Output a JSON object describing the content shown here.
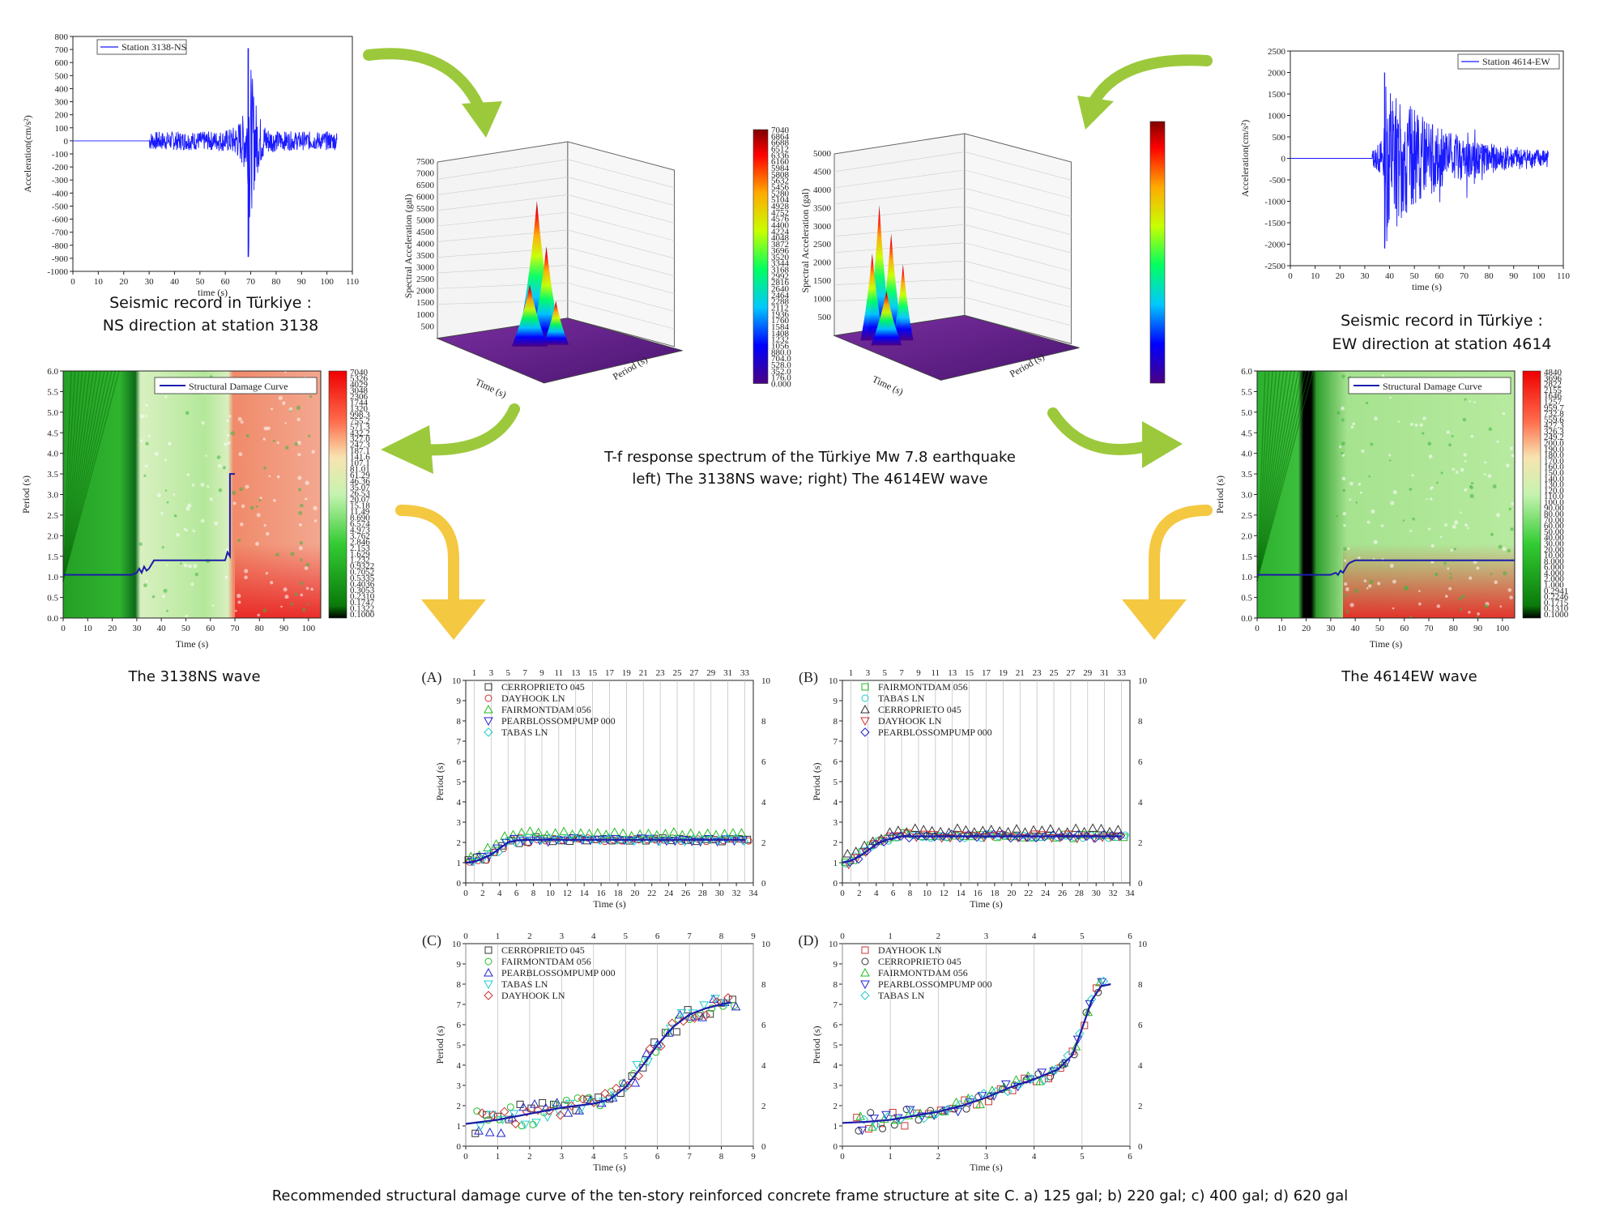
{
  "captions": {
    "left_record_1": "Seismic record in Türkiye :",
    "left_record_2": "NS direction at station 3138",
    "right_record_1": "Seismic record in Türkiye :",
    "right_record_2": "EW direction at station 4614",
    "center_1": "T-f response spectrum of the Türkiye Mw 7.8 earthquake",
    "center_2": "left) The 3138NS wave; right) The 4614EW wave",
    "left_damage": "The 3138NS wave",
    "right_damage": "The 4614EW wave",
    "bottom": "Recommended structural damage curve of the ten-story reinforced concrete frame structure at site C. a) 125 gal; b) 220 gal; c) 400 gal; d) 620 gal"
  },
  "colors": {
    "signal": "#1a1aff",
    "curve": "#1c1ca8",
    "arrow_green": "#9cc93b",
    "arrow_yellow": "#f5c842",
    "marker_cerro": "#333333",
    "marker_dayhook": "#cc3333",
    "marker_fairmont": "#22bb22",
    "marker_pearblossom": "#2222cc",
    "marker_tabas": "#22cccc"
  },
  "chart_data": [
    {
      "id": "record_3138",
      "type": "line",
      "legend": "Station 3138-NS",
      "xlabel": "time (s)",
      "ylabel": "Acceleration(cm/s²)",
      "xlim": [
        0,
        110
      ],
      "ylim": [
        -1000,
        800
      ],
      "xticks": [
        0,
        10,
        20,
        30,
        40,
        50,
        60,
        70,
        80,
        90,
        100,
        110
      ],
      "yticks": [
        -1000,
        -900,
        -800,
        -700,
        -600,
        -500,
        -400,
        -300,
        -200,
        -100,
        0,
        100,
        200,
        300,
        400,
        500,
        600,
        700,
        800
      ],
      "signal": {
        "start": 30,
        "end": 104,
        "peak_time": 69,
        "peak_max": 710,
        "peak_min": -890
      }
    },
    {
      "id": "record_4614",
      "type": "line",
      "legend": "Station 4614-EW",
      "xlabel": "time (s)",
      "ylabel": "Acceleration(cm/s²)",
      "xlim": [
        0,
        110
      ],
      "ylim": [
        -2500,
        2500
      ],
      "xticks": [
        0,
        10,
        20,
        30,
        40,
        50,
        60,
        70,
        80,
        90,
        100,
        110
      ],
      "yticks": [
        -2500,
        -2000,
        -1500,
        -1000,
        -500,
        0,
        500,
        1000,
        1500,
        2000,
        2500
      ],
      "signal": {
        "start": 33,
        "end": 104,
        "peak_time": 38,
        "peak_max": 2000,
        "peak_min": -2100
      }
    },
    {
      "id": "tf_3138",
      "type": "surface3d",
      "zlabel": "Spectral Acceleration (gal)",
      "xlabel": "Time (s)",
      "ylabel": "Period (s)",
      "zticks": [
        500,
        1000,
        1500,
        2000,
        2500,
        3000,
        3500,
        4000,
        4500,
        5000,
        5500,
        6000,
        6500,
        7000,
        7500
      ],
      "colorbar_ticks": [
        "7040",
        "6864",
        "6688",
        "6512",
        "6336",
        "6160",
        "5984",
        "5808",
        "5632",
        "5456",
        "5280",
        "5104",
        "4928",
        "4752",
        "4576",
        "4400",
        "4224",
        "4048",
        "3872",
        "3696",
        "3520",
        "3344",
        "3168",
        "2992",
        "2816",
        "2640",
        "2464",
        "2288",
        "2112",
        "1936",
        "1760",
        "1584",
        "1408",
        "1232",
        "1056",
        "880.0",
        "704.0",
        "528.0",
        "352.0",
        "176.0",
        "0.000"
      ]
    },
    {
      "id": "tf_4614",
      "type": "surface3d",
      "zlabel": "Spectral Acceleration (gal)",
      "xlabel": "Time (s)",
      "ylabel": "Period (s)",
      "zticks": [
        500,
        1000,
        1500,
        2000,
        2500,
        3000,
        3500,
        4000,
        4500,
        5000
      ]
    },
    {
      "id": "damage_3138",
      "type": "heatmap",
      "legend": "Structural Damage Curve",
      "xlabel": "Time (s)",
      "ylabel": "Period (s)",
      "xlim": [
        0,
        105
      ],
      "ylim": [
        0,
        6
      ],
      "xticks": [
        0,
        10,
        20,
        30,
        40,
        50,
        60,
        70,
        80,
        90,
        100
      ],
      "yticks": [
        0.0,
        0.5,
        1.0,
        1.5,
        2.0,
        2.5,
        3.0,
        3.5,
        4.0,
        4.5,
        5.0,
        5.5,
        6.0
      ],
      "colorbar_ticks": [
        "7040",
        "5326",
        "4029",
        "3048",
        "2306",
        "1744",
        "1320",
        "998.3",
        "755.2",
        "571.3",
        "432.2",
        "327.0",
        "247.3",
        "187.1",
        "141.6",
        "107.1",
        "81.01",
        "61.29",
        "46.36",
        "35.07",
        "26.53",
        "20.07",
        "15.18",
        "11.49",
        "8.690",
        "6.574",
        "4.973",
        "3.762",
        "2.846",
        "2.153",
        "1.629",
        "1.232",
        "0.9322",
        "0.7052",
        "0.5335",
        "0.4036",
        "0.3053",
        "0.2310",
        "0.1747",
        "0.1322",
        "0.1000"
      ],
      "curve": {
        "x": [
          0,
          28,
          30,
          31,
          32,
          33,
          34,
          35,
          36,
          37,
          38,
          66,
          67,
          68,
          68,
          70
        ],
        "y": [
          1.05,
          1.05,
          1.1,
          1.2,
          1.1,
          1.25,
          1.15,
          1.2,
          1.3,
          1.4,
          1.4,
          1.4,
          1.6,
          1.5,
          3.5,
          3.5
        ]
      }
    },
    {
      "id": "damage_4614",
      "type": "heatmap",
      "legend": "Structural Damage Curve",
      "xlabel": "Time (s)",
      "ylabel": "Period (s)",
      "xlim": [
        0,
        105
      ],
      "ylim": [
        0,
        6
      ],
      "xticks": [
        0,
        10,
        20,
        30,
        40,
        50,
        60,
        70,
        80,
        90,
        100
      ],
      "yticks": [
        0.0,
        0.5,
        1.0,
        1.5,
        2.0,
        2.5,
        3.0,
        3.5,
        4.0,
        4.5,
        5.0,
        5.5,
        6.0
      ],
      "colorbar_ticks": [
        "4840",
        "3696",
        "2822",
        "2155",
        "1646",
        "1257",
        "959.7",
        "732.8",
        "559.6",
        "427.3",
        "326.3",
        "249.2",
        "200.0",
        "190.0",
        "180.0",
        "170.0",
        "160.0",
        "150.0",
        "140.0",
        "130.0",
        "120.0",
        "110.0",
        "100.0",
        "90.00",
        "80.00",
        "70.00",
        "60.00",
        "50.00",
        "40.00",
        "30.00",
        "20.00",
        "10.00",
        "8.000",
        "6.000",
        "4.000",
        "2.000",
        "1.000",
        "0.2941",
        "0.2246",
        "0.1715",
        "0.1310",
        "0.1000"
      ],
      "curve": {
        "x": [
          0,
          30,
          32,
          33,
          34,
          35,
          36,
          37,
          38,
          40,
          42,
          105
        ],
        "y": [
          1.05,
          1.05,
          1.1,
          1.05,
          1.15,
          1.1,
          1.2,
          1.3,
          1.35,
          1.4,
          1.4,
          1.4
        ]
      }
    },
    {
      "id": "panel_A",
      "type": "scatter",
      "label": "(A)",
      "xlabel": "Time (s)",
      "ylabel": "Period (s)",
      "xlim": [
        0,
        34
      ],
      "ylim": [
        0,
        10
      ],
      "top_ticks": [
        1,
        3,
        5,
        7,
        9,
        11,
        13,
        15,
        17,
        19,
        21,
        23,
        25,
        27,
        29,
        31,
        33
      ],
      "legend": [
        "CERROPRIETO 045",
        "DAYHOOK LN",
        "FAIRMONTDAM 056",
        "PEARBLOSSOMPUMP 000",
        "TABAS LN"
      ],
      "curve": {
        "x": [
          0,
          1,
          2,
          3,
          4,
          5,
          6,
          7,
          8,
          33
        ],
        "y": [
          1.0,
          1.05,
          1.2,
          1.4,
          1.7,
          2.0,
          2.1,
          2.12,
          2.13,
          2.13
        ]
      }
    },
    {
      "id": "panel_B",
      "type": "scatter",
      "label": "(B)",
      "xlabel": "Time (s)",
      "ylabel": "Period (s)",
      "xlim": [
        0,
        34
      ],
      "ylim": [
        0,
        10
      ],
      "top_ticks": [
        1,
        3,
        5,
        7,
        9,
        11,
        13,
        15,
        17,
        19,
        21,
        23,
        25,
        27,
        29,
        31,
        33
      ],
      "legend": [
        "FAIRMONTDAM 056",
        "TABAS LN",
        "CERROPRIETO 045",
        "DAYHOOK LN",
        "PEARBLOSSOMPUMP 000"
      ],
      "curve": {
        "x": [
          0,
          1,
          2,
          3,
          4,
          5,
          6,
          7,
          8,
          33
        ],
        "y": [
          1.0,
          1.1,
          1.3,
          1.6,
          1.9,
          2.1,
          2.2,
          2.3,
          2.3,
          2.3
        ]
      }
    },
    {
      "id": "panel_C",
      "type": "scatter",
      "label": "(C)",
      "xlabel": "Time (s)",
      "ylabel": "Period (s)",
      "xlim": [
        0,
        9
      ],
      "ylim": [
        0,
        10
      ],
      "top_ticks": [
        0,
        1,
        2,
        3,
        4,
        5,
        6,
        7,
        8,
        9
      ],
      "legend": [
        "CERROPRIETO 045",
        "FAIRMONTDAM 056",
        "PEARBLOSSOMPUMP 000",
        "TABAS LN",
        "DAYHOOK LN"
      ],
      "curve": {
        "x": [
          0,
          1,
          2,
          3,
          4,
          4.5,
          5,
          5.5,
          6,
          6.5,
          7,
          7.5,
          8,
          8.3
        ],
        "y": [
          1.1,
          1.3,
          1.6,
          1.9,
          2.1,
          2.3,
          2.9,
          3.9,
          5.0,
          5.9,
          6.5,
          6.8,
          7.0,
          7.1
        ]
      }
    },
    {
      "id": "panel_D",
      "type": "scatter",
      "label": "(D)",
      "xlabel": "Time (s)",
      "ylabel": "Period (s)",
      "xlim": [
        0,
        6
      ],
      "ylim": [
        0,
        10
      ],
      "top_ticks": [
        0,
        1,
        2,
        3,
        4,
        5,
        6
      ],
      "legend": [
        "DAYHOOK LN",
        "CERROPRIETO 045",
        "FAIRMONTDAM 056",
        "PEARBLOSSOMPUMP 000",
        "TABAS LN"
      ],
      "curve": {
        "x": [
          0,
          0.5,
          1,
          1.5,
          2,
          2.5,
          3,
          3.5,
          4,
          4.5,
          4.8,
          5.0,
          5.2,
          5.4,
          5.6
        ],
        "y": [
          1.15,
          1.2,
          1.3,
          1.5,
          1.7,
          2.0,
          2.4,
          2.9,
          3.3,
          3.8,
          4.5,
          5.8,
          7.2,
          7.9,
          8.0
        ]
      }
    }
  ]
}
